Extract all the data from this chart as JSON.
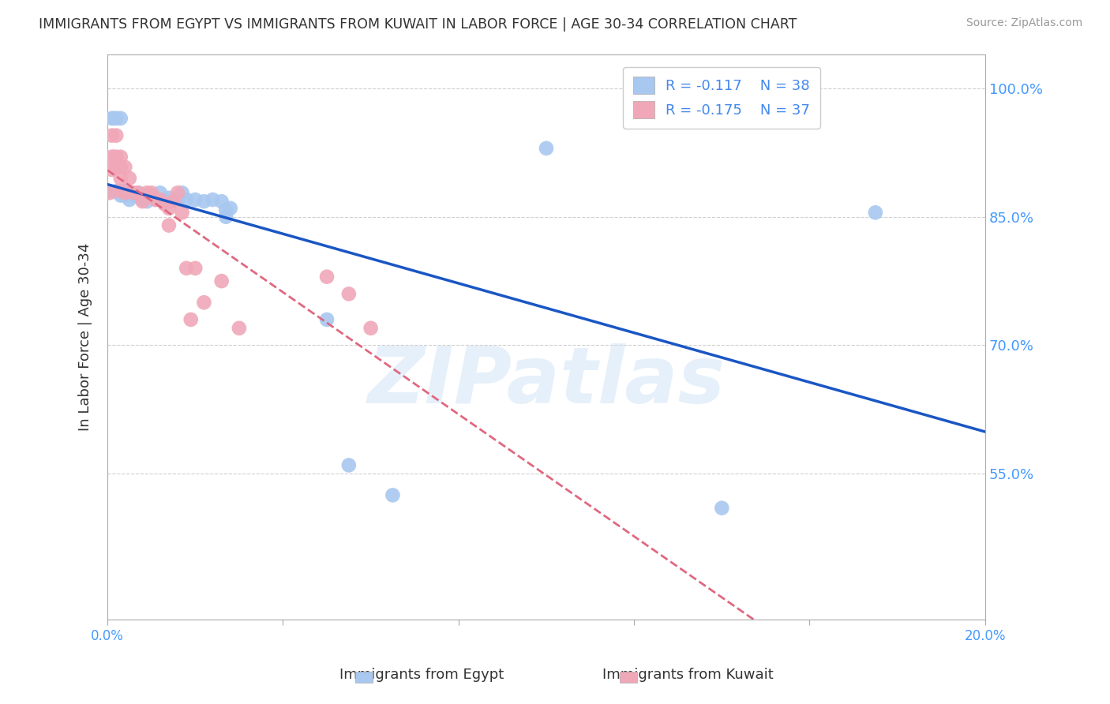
{
  "title": "IMMIGRANTS FROM EGYPT VS IMMIGRANTS FROM KUWAIT IN LABOR FORCE | AGE 30-34 CORRELATION CHART",
  "source": "Source: ZipAtlas.com",
  "xlabel_bottom": [
    "Immigrants from Egypt",
    "Immigrants from Kuwait"
  ],
  "ylabel": "In Labor Force | Age 30-34",
  "xlim": [
    0.0,
    0.2
  ],
  "ylim": [
    0.38,
    1.04
  ],
  "yticks": [
    0.55,
    0.7,
    0.85,
    1.0
  ],
  "ytick_labels": [
    "55.0%",
    "70.0%",
    "85.0%",
    "100.0%"
  ],
  "xticks": [
    0.0,
    0.04,
    0.08,
    0.12,
    0.16,
    0.2
  ],
  "xtick_labels": [
    "0.0%",
    "",
    "",
    "",
    "",
    "20.0%"
  ],
  "egypt_color": "#a8c8f0",
  "kuwait_color": "#f0a8b8",
  "egypt_line_color": "#1a56c4",
  "kuwait_line_color": "#e06880",
  "legend_egypt_r": "-0.117",
  "legend_egypt_n": "38",
  "legend_kuwait_r": "-0.175",
  "legend_kuwait_n": "37",
  "egypt_x": [
    0.0005,
    0.001,
    0.0015,
    0.002,
    0.002,
    0.0025,
    0.003,
    0.003,
    0.003,
    0.004,
    0.004,
    0.005,
    0.006,
    0.007,
    0.008,
    0.008,
    0.009,
    0.01,
    0.011,
    0.012,
    0.013,
    0.014,
    0.016,
    0.017,
    0.018,
    0.02,
    0.022,
    0.024,
    0.026,
    0.027,
    0.027,
    0.028,
    0.05,
    0.055,
    0.065,
    0.1,
    0.14,
    0.175
  ],
  "egypt_y": [
    0.88,
    0.965,
    0.965,
    0.88,
    0.965,
    0.88,
    0.965,
    0.88,
    0.875,
    0.88,
    0.875,
    0.87,
    0.875,
    0.878,
    0.87,
    0.875,
    0.868,
    0.875,
    0.87,
    0.878,
    0.87,
    0.872,
    0.87,
    0.878,
    0.87,
    0.87,
    0.868,
    0.87,
    0.868,
    0.858,
    0.85,
    0.86,
    0.73,
    0.56,
    0.525,
    0.93,
    0.51,
    0.855
  ],
  "kuwait_x": [
    0.0005,
    0.001,
    0.001,
    0.001,
    0.0015,
    0.002,
    0.002,
    0.002,
    0.003,
    0.003,
    0.003,
    0.003,
    0.004,
    0.004,
    0.005,
    0.006,
    0.007,
    0.008,
    0.009,
    0.01,
    0.011,
    0.012,
    0.013,
    0.014,
    0.014,
    0.015,
    0.016,
    0.017,
    0.018,
    0.019,
    0.02,
    0.022,
    0.026,
    0.03,
    0.05,
    0.055,
    0.06
  ],
  "kuwait_y": [
    0.878,
    0.945,
    0.92,
    0.905,
    0.92,
    0.945,
    0.92,
    0.908,
    0.92,
    0.908,
    0.895,
    0.88,
    0.908,
    0.878,
    0.895,
    0.878,
    0.878,
    0.868,
    0.878,
    0.878,
    0.87,
    0.87,
    0.865,
    0.84,
    0.86,
    0.868,
    0.878,
    0.855,
    0.79,
    0.73,
    0.79,
    0.75,
    0.775,
    0.72,
    0.78,
    0.76,
    0.72
  ],
  "watermark": "ZIPatlas",
  "background_color": "#ffffff",
  "grid_color": "#d0d0d0",
  "axis_color": "#aaaaaa",
  "tick_label_color": "#4499ff",
  "title_color": "#333333"
}
